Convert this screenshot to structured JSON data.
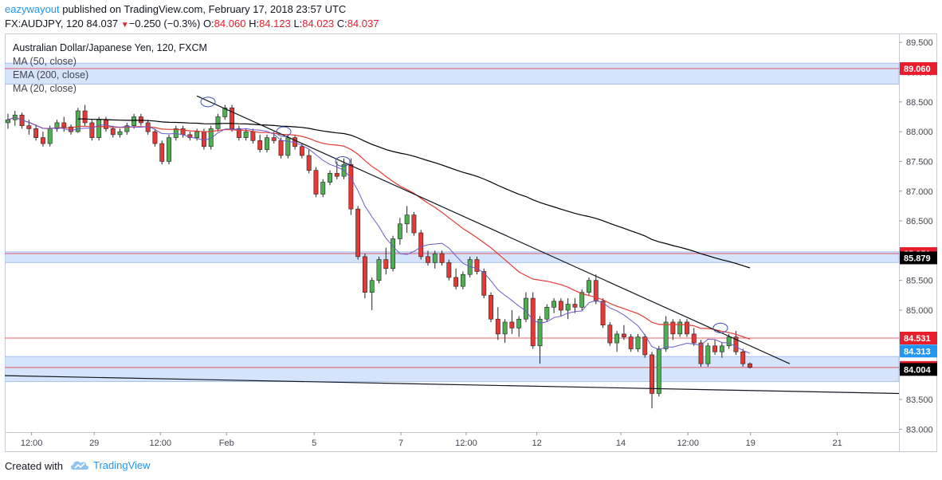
{
  "header": {
    "author": "eazywayout",
    "published_text": " published on TradingView.com, February 17, 2018 23:57 UTC",
    "symbol": "FX:AUDJPY, 120",
    "last": "84.037",
    "change": "−0.250 (−0.3%)",
    "o_label": "O:",
    "o_value": "84.060",
    "h_label": "H:",
    "h_value": "84.123",
    "l_label": "L:",
    "l_value": "84.023",
    "c_label": "C:",
    "c_value": "84.037"
  },
  "legend": {
    "title": "Australian Dollar/Japanese Yen, 120, FXCM",
    "ma50": "MA (50, close)",
    "ema200": "EMA (200, close)",
    "ma20": "MA (20, close)"
  },
  "footer": {
    "created_with": "Created with",
    "brand": "TradingView"
  },
  "chart_data": {
    "type": "candlestick",
    "y_axis_labels": [
      "89.500",
      "89.000",
      "88.500",
      "88.000",
      "87.500",
      "87.000",
      "86.500",
      "86.000",
      "85.500",
      "85.000",
      "84.500",
      "84.000",
      "83.500",
      "83.000"
    ],
    "x_axis_labels": [
      "12:00",
      "29",
      "12:00",
      "Feb",
      "5",
      "7",
      "12:00",
      "12",
      "14",
      "12:00",
      "19",
      "21"
    ],
    "price_badges": [
      {
        "value": "89.060",
        "color": "#e91e2c"
      },
      {
        "value": "85.951",
        "color": "#e91e2c"
      },
      {
        "value": "85.879",
        "color": "#000000"
      },
      {
        "value": "84.531",
        "color": "#e91e2c"
      },
      {
        "value": "84.313",
        "color": "#2196f3"
      },
      {
        "value": "84.037",
        "color": "#e91e2c"
      },
      {
        "value": "84.004",
        "color": "#000000"
      }
    ],
    "zones": [
      {
        "from": 88.8,
        "to": 89.15
      },
      {
        "from": 85.8,
        "to": 85.98
      },
      {
        "from": 83.8,
        "to": 84.22
      }
    ],
    "ylim": [
      82.95,
      89.65
    ],
    "colors": {
      "up": "#4caf50",
      "down": "#e53935",
      "ma50": "#e53935",
      "ema200": "#000000",
      "ma20": "#6a5acd",
      "zone": "#d6e4fb"
    },
    "candles": [
      [
        88.15,
        88.3,
        88.05,
        88.2
      ],
      [
        88.2,
        88.35,
        88.1,
        88.28
      ],
      [
        88.28,
        88.32,
        88.05,
        88.1
      ],
      [
        88.1,
        88.2,
        87.95,
        88.05
      ],
      [
        88.05,
        88.12,
        87.85,
        87.9
      ],
      [
        87.9,
        88.0,
        87.75,
        87.8
      ],
      [
        87.8,
        88.1,
        87.75,
        88.05
      ],
      [
        88.05,
        88.2,
        88.0,
        88.15
      ],
      [
        88.15,
        88.25,
        88.0,
        88.08
      ],
      [
        88.08,
        88.12,
        87.95,
        88.0
      ],
      [
        88.0,
        88.4,
        87.98,
        88.35
      ],
      [
        88.35,
        88.45,
        88.1,
        88.15
      ],
      [
        88.15,
        88.2,
        87.85,
        87.9
      ],
      [
        87.9,
        88.25,
        87.85,
        88.2
      ],
      [
        88.2,
        88.25,
        88.0,
        88.05
      ],
      [
        88.05,
        88.1,
        87.9,
        87.95
      ],
      [
        87.95,
        88.05,
        87.9,
        88.0
      ],
      [
        88.0,
        88.15,
        87.95,
        88.1
      ],
      [
        88.1,
        88.3,
        88.05,
        88.25
      ],
      [
        88.25,
        88.3,
        88.1,
        88.15
      ],
      [
        88.15,
        88.2,
        87.95,
        88.0
      ],
      [
        88.0,
        88.05,
        87.75,
        87.8
      ],
      [
        87.8,
        87.85,
        87.45,
        87.5
      ],
      [
        87.5,
        87.95,
        87.45,
        87.9
      ],
      [
        87.9,
        88.1,
        87.85,
        88.05
      ],
      [
        88.05,
        88.1,
        87.9,
        87.95
      ],
      [
        87.95,
        88.0,
        87.85,
        87.9
      ],
      [
        87.9,
        88.05,
        87.85,
        88.0
      ],
      [
        88.0,
        88.05,
        87.7,
        87.75
      ],
      [
        87.75,
        88.1,
        87.7,
        88.05
      ],
      [
        88.05,
        88.3,
        88.0,
        88.25
      ],
      [
        88.25,
        88.45,
        88.2,
        88.4
      ],
      [
        88.4,
        88.45,
        88.0,
        88.05
      ],
      [
        88.05,
        88.1,
        87.85,
        87.9
      ],
      [
        87.9,
        88.05,
        87.85,
        88.0
      ],
      [
        88.0,
        88.05,
        87.8,
        87.85
      ],
      [
        87.85,
        87.95,
        87.65,
        87.7
      ],
      [
        87.7,
        87.95,
        87.65,
        87.9
      ],
      [
        87.9,
        88.0,
        87.8,
        87.85
      ],
      [
        87.85,
        87.9,
        87.55,
        87.6
      ],
      [
        87.6,
        87.95,
        87.55,
        87.9
      ],
      [
        87.9,
        87.95,
        87.7,
        87.75
      ],
      [
        87.75,
        87.8,
        87.55,
        87.6
      ],
      [
        87.6,
        87.7,
        87.3,
        87.35
      ],
      [
        87.35,
        87.4,
        86.9,
        86.95
      ],
      [
        86.95,
        87.2,
        86.9,
        87.15
      ],
      [
        87.15,
        87.35,
        87.1,
        87.3
      ],
      [
        87.3,
        87.5,
        87.2,
        87.25
      ],
      [
        87.25,
        87.55,
        87.2,
        87.45
      ],
      [
        87.45,
        87.55,
        86.6,
        86.7
      ],
      [
        86.7,
        86.75,
        85.85,
        85.9
      ],
      [
        85.9,
        85.95,
        85.2,
        85.3
      ],
      [
        85.3,
        85.55,
        85.0,
        85.5
      ],
      [
        85.5,
        85.9,
        85.45,
        85.85
      ],
      [
        85.85,
        86.05,
        85.6,
        85.7
      ],
      [
        85.7,
        86.25,
        85.65,
        86.2
      ],
      [
        86.2,
        86.55,
        86.1,
        86.45
      ],
      [
        86.45,
        86.75,
        86.3,
        86.6
      ],
      [
        86.6,
        86.65,
        86.25,
        86.3
      ],
      [
        86.3,
        86.35,
        85.85,
        85.9
      ],
      [
        85.9,
        86.0,
        85.75,
        85.8
      ],
      [
        85.8,
        86.0,
        85.7,
        85.95
      ],
      [
        85.95,
        86.0,
        85.75,
        85.8
      ],
      [
        85.8,
        85.85,
        85.5,
        85.55
      ],
      [
        85.55,
        85.7,
        85.35,
        85.4
      ],
      [
        85.4,
        85.65,
        85.35,
        85.6
      ],
      [
        85.6,
        85.9,
        85.55,
        85.85
      ],
      [
        85.85,
        85.9,
        85.6,
        85.65
      ],
      [
        85.65,
        85.7,
        85.2,
        85.25
      ],
      [
        85.25,
        85.3,
        84.8,
        84.85
      ],
      [
        84.85,
        85.05,
        84.5,
        84.6
      ],
      [
        84.6,
        84.85,
        84.45,
        84.8
      ],
      [
        84.8,
        85.0,
        84.6,
        84.7
      ],
      [
        84.7,
        84.9,
        84.55,
        84.85
      ],
      [
        84.85,
        85.3,
        84.8,
        85.2
      ],
      [
        85.2,
        85.3,
        84.35,
        84.4
      ],
      [
        84.4,
        84.9,
        84.1,
        84.85
      ],
      [
        84.85,
        85.1,
        84.8,
        85.05
      ],
      [
        85.05,
        85.2,
        84.95,
        85.15
      ],
      [
        85.15,
        85.2,
        84.9,
        85.0
      ],
      [
        85.0,
        85.2,
        84.85,
        85.1
      ],
      [
        85.1,
        85.2,
        84.95,
        85.05
      ],
      [
        85.05,
        85.35,
        85.0,
        85.3
      ],
      [
        85.3,
        85.55,
        85.25,
        85.5
      ],
      [
        85.5,
        85.6,
        85.1,
        85.15
      ],
      [
        85.15,
        85.2,
        84.7,
        84.75
      ],
      [
        84.75,
        84.8,
        84.4,
        84.45
      ],
      [
        84.45,
        84.65,
        84.3,
        84.6
      ],
      [
        84.6,
        84.75,
        84.5,
        84.55
      ],
      [
        84.55,
        84.6,
        84.3,
        84.35
      ],
      [
        84.35,
        84.6,
        84.3,
        84.55
      ],
      [
        84.55,
        84.6,
        84.2,
        84.25
      ],
      [
        84.25,
        84.3,
        83.35,
        83.6
      ],
      [
        83.6,
        84.4,
        83.55,
        84.35
      ],
      [
        84.35,
        84.9,
        84.3,
        84.8
      ],
      [
        84.8,
        84.85,
        84.5,
        84.6
      ],
      [
        84.6,
        84.85,
        84.55,
        84.8
      ],
      [
        84.8,
        84.85,
        84.55,
        84.6
      ],
      [
        84.6,
        84.7,
        84.4,
        84.45
      ],
      [
        84.45,
        84.5,
        84.05,
        84.1
      ],
      [
        84.1,
        84.45,
        84.05,
        84.4
      ],
      [
        84.4,
        84.5,
        84.25,
        84.3
      ],
      [
        84.3,
        84.45,
        84.2,
        84.4
      ],
      [
        84.4,
        84.6,
        84.35,
        84.55
      ],
      [
        84.55,
        84.65,
        84.25,
        84.3
      ],
      [
        84.3,
        84.35,
        84.05,
        84.1
      ],
      [
        84.1,
        84.12,
        84.02,
        84.04
      ]
    ]
  }
}
